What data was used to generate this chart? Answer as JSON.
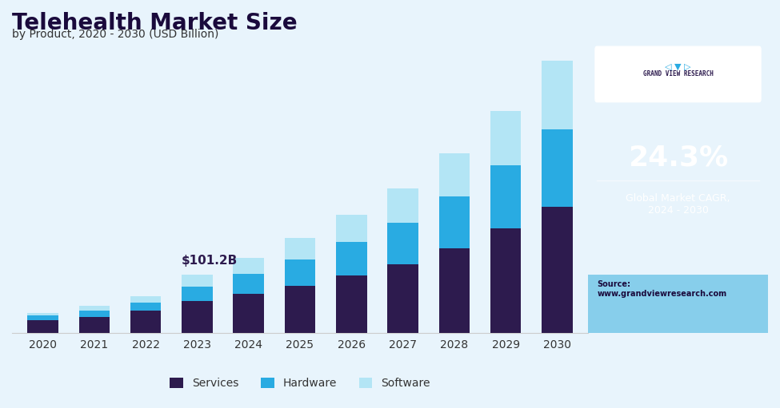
{
  "title": "Telehealth Market Size",
  "subtitle": "by Product, 2020 - 2030 (USD Billion)",
  "years": [
    "2020",
    "2021",
    "2022",
    "2023",
    "2024",
    "2025",
    "2026",
    "2027",
    "2028",
    "2029",
    "2030"
  ],
  "services": [
    22,
    28,
    38,
    55,
    68,
    82,
    100,
    120,
    148,
    182,
    220
  ],
  "hardware": [
    8,
    11,
    15,
    26,
    35,
    46,
    58,
    72,
    90,
    110,
    135
  ],
  "software": [
    5,
    8,
    11,
    20,
    28,
    37,
    48,
    60,
    75,
    95,
    120
  ],
  "annotation_text": "$101.2B",
  "annotation_year_index": 3,
  "colors": {
    "services": "#2d1b4e",
    "hardware": "#29abe2",
    "software": "#b3e5f5",
    "chart_bg": "#e8f4fc",
    "sidebar_bg": "#3d1a6e",
    "sidebar_bottom_bg": "#87ceeb"
  },
  "legend_labels": [
    "Services",
    "Hardware",
    "Software"
  ],
  "cagr_text": "24.3%",
  "cagr_label": "Global Market CAGR,\n2024 - 2030",
  "source_text": "Source:\nwww.grandviewresearch.com",
  "gvr_label": "GRAND VIEW RESEARCH"
}
